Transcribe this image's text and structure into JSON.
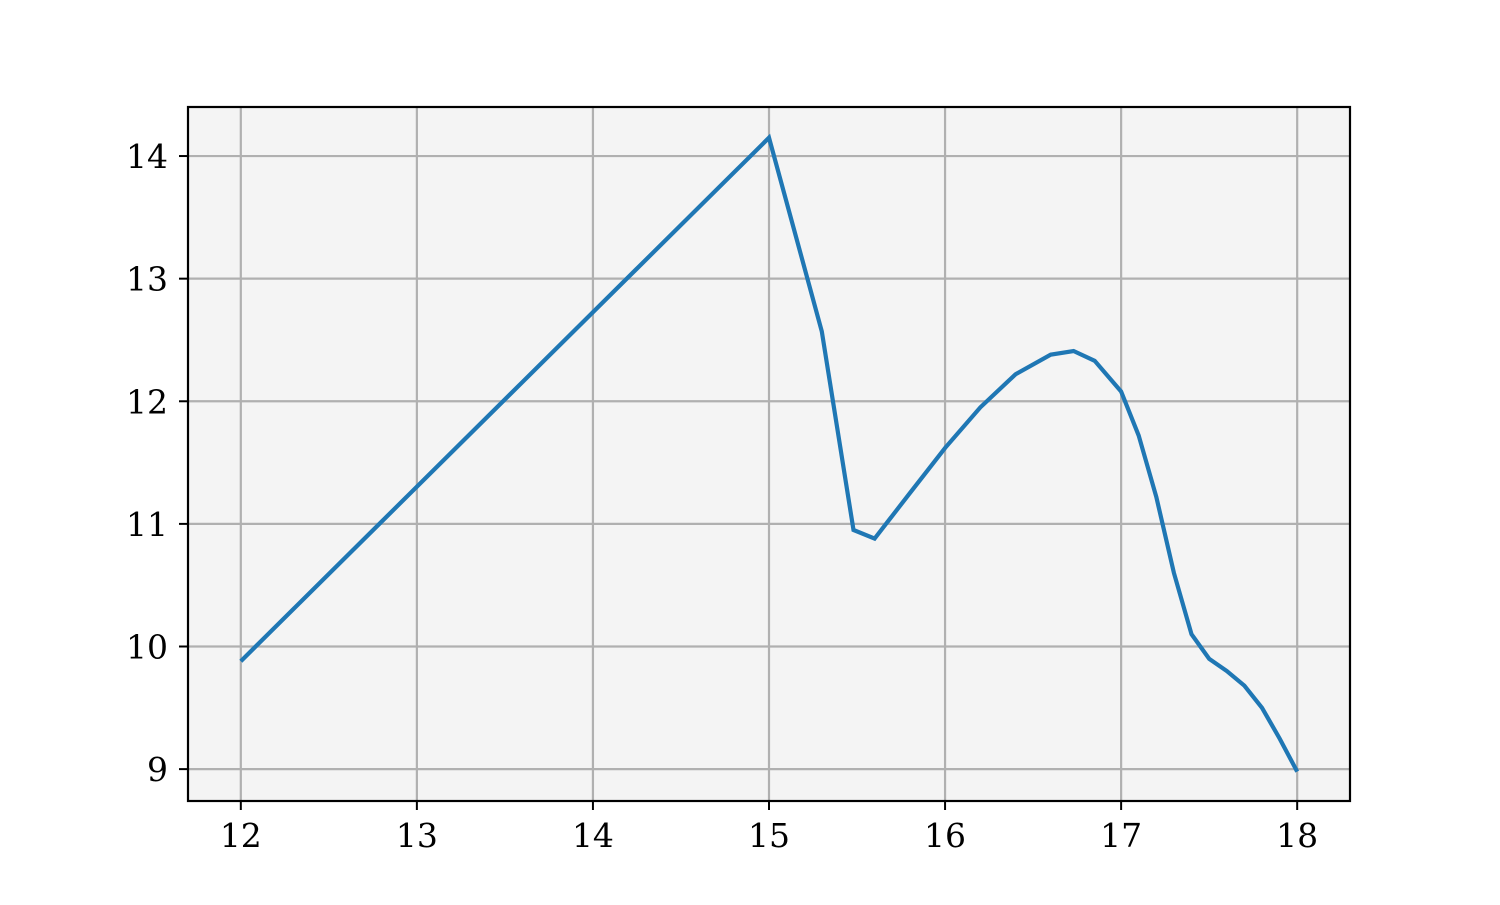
{
  "chart_data": {
    "type": "line",
    "title": "",
    "xlabel": "",
    "ylabel": "",
    "xlim": [
      11.7,
      18.3
    ],
    "ylim": [
      8.74,
      14.4
    ],
    "xticks": [
      12,
      13,
      14,
      15,
      16,
      17,
      18
    ],
    "yticks": [
      9,
      10,
      11,
      12,
      13,
      14
    ],
    "xtick_labels": [
      "12",
      "13",
      "14",
      "15",
      "16",
      "17",
      "18"
    ],
    "ytick_labels": [
      "9",
      "10",
      "11",
      "12",
      "13",
      "14"
    ],
    "grid": true,
    "legend": "none",
    "colors": {
      "line": "#1f77b4",
      "plot_background": "#f4f4f4",
      "grid": "#b0b0b0",
      "axes": "#000000"
    },
    "series": [
      {
        "x": [
          12.0,
          15.0,
          15.3,
          15.48,
          15.6,
          15.8,
          16.0,
          16.2,
          16.4,
          16.6,
          16.73,
          16.85,
          17.0,
          17.1,
          17.2,
          17.3,
          17.4,
          17.5,
          17.6,
          17.7,
          17.8,
          17.9,
          18.0
        ],
        "y": [
          9.88,
          14.15,
          12.57,
          10.95,
          10.88,
          11.25,
          11.62,
          11.95,
          12.22,
          12.38,
          12.41,
          12.33,
          12.08,
          11.72,
          11.22,
          10.6,
          10.1,
          9.9,
          9.8,
          9.68,
          9.5,
          9.25,
          8.98
        ]
      }
    ]
  }
}
